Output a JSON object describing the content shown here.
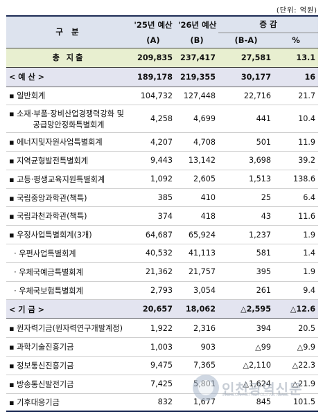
{
  "unit_note": "(단위: 억원)",
  "header": {
    "item": "구   분",
    "col_2025": "'25년 예산",
    "col_2025_sub": "(A)",
    "col_2026": "'26년 예산",
    "col_2026_sub": "(B)",
    "change": "증 감",
    "diff": "(B-A)",
    "pct": "%"
  },
  "rows": [
    {
      "type": "total",
      "label": "총 지출",
      "a": "209,835",
      "b": "237,417",
      "diff": "27,581",
      "pct": "13.1"
    },
    {
      "type": "section",
      "label": "< 예 산 >",
      "a": "189,178",
      "b": "219,355",
      "diff": "30,177",
      "pct": "16"
    },
    {
      "type": "item",
      "label": "▪ 일반회계",
      "a": "104,732",
      "b": "127,448",
      "diff": "22,716",
      "pct": "21.7"
    },
    {
      "type": "item2",
      "label": "▪ 소재·부품·장비산업경쟁력강화 및",
      "label2": "공급망안정화특별회계",
      "a": "4,258",
      "b": "4,699",
      "diff": "441",
      "pct": "10.4"
    },
    {
      "type": "item",
      "label": "▪ 에너지및자원사업특별회계",
      "a": "4,207",
      "b": "4,708",
      "diff": "501",
      "pct": "11.9"
    },
    {
      "type": "item",
      "label": "▪ 지역균형발전특별회계",
      "a": "9,443",
      "b": "13,142",
      "diff": "3,698",
      "pct": "39.2"
    },
    {
      "type": "item",
      "label": "▪ 고등·평생교육지원특별회계",
      "a": "1,092",
      "b": "2,605",
      "diff": "1,513",
      "pct": "138.6"
    },
    {
      "type": "item",
      "label": "▪ 국립중앙과학관(책특)",
      "a": "385",
      "b": "410",
      "diff": "25",
      "pct": "6.4"
    },
    {
      "type": "item",
      "label": "▪ 국립과천과학관(책특)",
      "a": "374",
      "b": "418",
      "diff": "43",
      "pct": "11.6"
    },
    {
      "type": "item",
      "label": "▪ 우정사업특별회계(3개)",
      "a": "64,687",
      "b": "65,924",
      "diff": "1,237",
      "pct": "1.9"
    },
    {
      "type": "item",
      "label": "  · 우편사업특별회계",
      "a": "40,532",
      "b": "41,113",
      "diff": "581",
      "pct": "1.4"
    },
    {
      "type": "item",
      "label": "  · 우체국예금특별회계",
      "a": "21,362",
      "b": "21,757",
      "diff": "395",
      "pct": "1.9"
    },
    {
      "type": "item",
      "label": "  · 우체국보험특별회계",
      "a": "2,793",
      "b": "3,054",
      "diff": "261",
      "pct": "9.4"
    },
    {
      "type": "section",
      "label": "< 기 금 >",
      "a": "20,657",
      "b": "18,062",
      "diff": "△2,595",
      "pct": "△12.6"
    },
    {
      "type": "item",
      "label": "▪ 원자력기금(원자력연구개발계정)",
      "a": "1,922",
      "b": "2,316",
      "diff": "394",
      "pct": "20.5"
    },
    {
      "type": "item",
      "label": "▪ 과학기술진흥기금",
      "a": "1,003",
      "b": "903",
      "diff": "△99",
      "pct": "△9.9"
    },
    {
      "type": "item",
      "label": "▪ 정보통신진흥기금",
      "a": "9,475",
      "b": "7,365",
      "diff": "△2,110",
      "pct": "△22.3"
    },
    {
      "type": "item",
      "label": "▪ 방송통신발전기금",
      "a": "7,425",
      "b": "5,801",
      "diff": "△1,624",
      "pct": "△21.9"
    },
    {
      "type": "last",
      "label": "▪ 기후대응기금",
      "a": "832",
      "b": "1,677",
      "diff": "845",
      "pct": "101.5"
    }
  ],
  "watermark": {
    "text": "인천광역신문",
    "sub": "INCHEON METROPOLITAN NEWS"
  }
}
